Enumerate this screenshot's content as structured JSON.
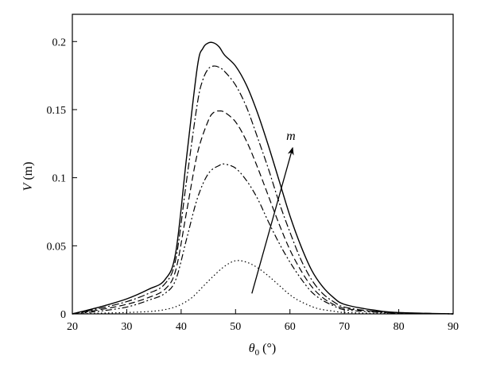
{
  "chart_data": {
    "type": "line",
    "title": "",
    "xlabel": "θ",
    "xlabel_sub": "0",
    "xlabel_unit": " (°)",
    "ylabel": "V",
    "ylabel_unit": " (m)",
    "xlim": [
      20,
      90
    ],
    "ylim": [
      0,
      0.22
    ],
    "xticks": [
      20,
      30,
      40,
      50,
      60,
      70,
      80,
      90
    ],
    "yticks": [
      0,
      0.05,
      0.1,
      0.15,
      0.2
    ],
    "ytick_labels": [
      "0",
      "0.05",
      "0.1",
      "0.15",
      "0.2"
    ],
    "grid": false,
    "legend": "none",
    "annotation": {
      "text": "m",
      "arrow_from": [
        53,
        0.015
      ],
      "arrow_to": [
        60.5,
        0.122
      ]
    },
    "series": [
      {
        "style": "dotted",
        "x": [
          20,
          25,
          30,
          35,
          38,
          40,
          42,
          44,
          46,
          48,
          50,
          52,
          54,
          56,
          58,
          60,
          62,
          65,
          68,
          70,
          75,
          80,
          90
        ],
        "y": [
          0,
          0.0005,
          0.001,
          0.002,
          0.004,
          0.007,
          0.012,
          0.02,
          0.028,
          0.035,
          0.039,
          0.038,
          0.034,
          0.028,
          0.021,
          0.014,
          0.009,
          0.004,
          0.002,
          0.001,
          0.0005,
          0.0002,
          0
        ]
      },
      {
        "style": "dash-dot-dot",
        "x": [
          20,
          25,
          30,
          34,
          37,
          39,
          41,
          43,
          45,
          47,
          48,
          50,
          52,
          54,
          56,
          58,
          60,
          62,
          64,
          66,
          68,
          70,
          75,
          80,
          90
        ],
        "y": [
          0,
          0.002,
          0.005,
          0.01,
          0.015,
          0.025,
          0.055,
          0.085,
          0.103,
          0.109,
          0.11,
          0.107,
          0.098,
          0.085,
          0.068,
          0.052,
          0.038,
          0.026,
          0.016,
          0.01,
          0.006,
          0.003,
          0.0015,
          0.0005,
          0
        ]
      },
      {
        "style": "dashed",
        "x": [
          20,
          25,
          30,
          34,
          37,
          39,
          41,
          43,
          45,
          46,
          47,
          48,
          50,
          52,
          54,
          56,
          58,
          60,
          62,
          64,
          66,
          68,
          70,
          75,
          80,
          90
        ],
        "y": [
          0,
          0.003,
          0.007,
          0.012,
          0.018,
          0.032,
          0.075,
          0.118,
          0.142,
          0.148,
          0.149,
          0.148,
          0.141,
          0.127,
          0.108,
          0.087,
          0.066,
          0.047,
          0.032,
          0.02,
          0.012,
          0.007,
          0.004,
          0.002,
          0.0008,
          0
        ]
      },
      {
        "style": "dash-dot",
        "x": [
          20,
          25,
          30,
          34,
          37,
          39,
          41,
          43,
          44,
          45,
          46,
          47,
          48,
          50,
          52,
          54,
          56,
          58,
          60,
          62,
          64,
          66,
          68,
          70,
          75,
          80,
          90
        ],
        "y": [
          0,
          0.004,
          0.009,
          0.015,
          0.022,
          0.04,
          0.098,
          0.155,
          0.172,
          0.18,
          0.182,
          0.181,
          0.178,
          0.168,
          0.152,
          0.13,
          0.107,
          0.082,
          0.06,
          0.04,
          0.025,
          0.015,
          0.009,
          0.005,
          0.002,
          0.0008,
          0
        ]
      },
      {
        "style": "solid",
        "x": [
          20,
          25,
          30,
          34,
          37,
          39,
          41,
          43,
          44,
          45,
          46,
          47,
          48,
          50,
          52,
          54,
          56,
          58,
          60,
          62,
          64,
          66,
          68,
          70,
          75,
          80,
          90
        ],
        "y": [
          0,
          0.005,
          0.011,
          0.018,
          0.025,
          0.045,
          0.115,
          0.182,
          0.195,
          0.199,
          0.199,
          0.196,
          0.19,
          0.182,
          0.168,
          0.148,
          0.124,
          0.098,
          0.072,
          0.05,
          0.032,
          0.02,
          0.012,
          0.007,
          0.003,
          0.001,
          0
        ]
      }
    ]
  }
}
